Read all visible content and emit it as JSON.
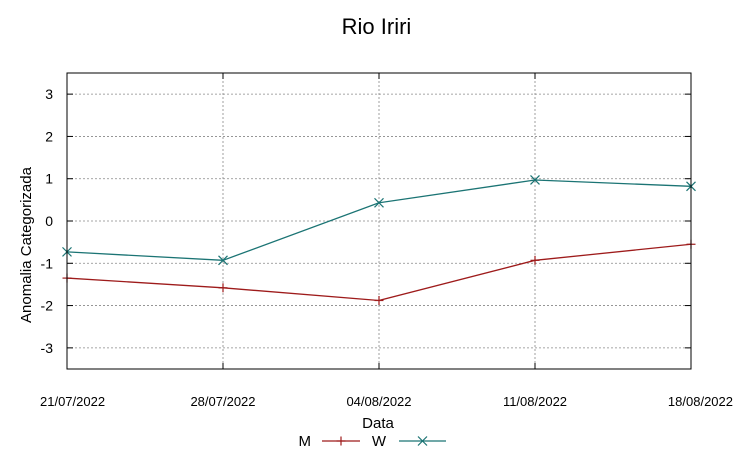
{
  "chart_data": {
    "type": "line",
    "title": "Rio Iriri",
    "xlabel": "Data",
    "ylabel": "Anomalia Categorizada",
    "categories": [
      "21/07/2022",
      "28/07/2022",
      "04/08/2022",
      "11/08/2022",
      "18/08/2022"
    ],
    "yticks": [
      "-3",
      "-2",
      "-1",
      "0",
      "1",
      "2",
      "3"
    ],
    "ylim": [
      -3.5,
      3.5
    ],
    "grid": true,
    "legend_position": "bottom",
    "series": [
      {
        "name": "M",
        "color": "#9e1b1b",
        "marker": "plus",
        "values": [
          -1.35,
          -1.58,
          -1.88,
          -0.93,
          -0.55
        ]
      },
      {
        "name": "W",
        "color": "#1b7474",
        "marker": "cross",
        "values": [
          -0.73,
          -0.93,
          0.43,
          0.97,
          0.82
        ]
      }
    ]
  }
}
